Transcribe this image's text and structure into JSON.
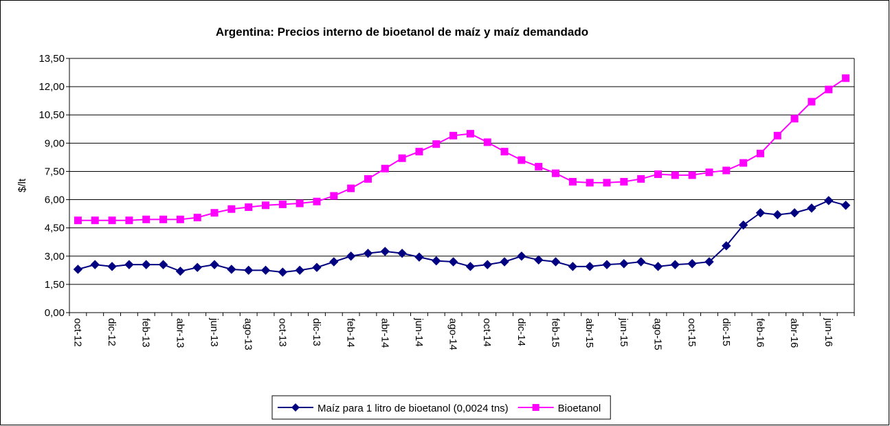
{
  "chart_data": {
    "type": "line",
    "title": "Argentina: Precios interno de bioetanol de maíz y maíz demandado",
    "y_label": "$/lt",
    "categories": [
      "oct-12",
      null,
      "dic-12",
      null,
      "feb-13",
      null,
      "abr-13",
      null,
      "jun-13",
      null,
      "ago-13",
      null,
      "oct-13",
      null,
      "dic-13",
      null,
      "feb-14",
      null,
      "abr-14",
      null,
      "jun-14",
      null,
      "ago-14",
      null,
      "oct-14",
      null,
      "dic-14",
      null,
      "feb-15",
      null,
      "abr-15",
      null,
      "jun-15",
      null,
      "ago-15",
      null,
      "oct-15",
      null,
      "dic-15",
      null,
      "feb-16",
      null,
      "abr-16",
      null,
      "jun-16",
      null
    ],
    "series": [
      {
        "name": "Maíz para 1 litro de bioetanol (0,0024 tns)",
        "color": "#000080",
        "marker": "diamond",
        "values": [
          2.3,
          2.55,
          2.45,
          2.55,
          2.55,
          2.55,
          2.2,
          2.4,
          2.55,
          2.3,
          2.25,
          2.25,
          2.15,
          2.25,
          2.4,
          2.7,
          3.0,
          3.15,
          3.25,
          3.15,
          2.95,
          2.75,
          2.7,
          2.45,
          2.55,
          2.7,
          3.0,
          2.8,
          2.7,
          2.45,
          2.45,
          2.55,
          2.6,
          2.7,
          2.45,
          2.55,
          2.6,
          2.7,
          3.55,
          4.65,
          5.3,
          5.2,
          5.3,
          5.55,
          5.95,
          5.7
        ]
      },
      {
        "name": "Bioetanol",
        "color": "#ff00ff",
        "marker": "square",
        "values": [
          4.9,
          4.9,
          4.9,
          4.9,
          4.95,
          4.95,
          4.95,
          5.05,
          5.3,
          5.5,
          5.6,
          5.7,
          5.75,
          5.8,
          5.9,
          6.2,
          6.6,
          7.1,
          7.65,
          8.2,
          8.55,
          8.95,
          9.4,
          9.5,
          9.05,
          8.55,
          8.1,
          7.75,
          7.4,
          6.95,
          6.9,
          6.9,
          6.95,
          7.1,
          7.35,
          7.3,
          7.3,
          7.45,
          7.55,
          7.95,
          8.45,
          9.4,
          10.3,
          11.2,
          11.85,
          12.45
        ]
      }
    ],
    "ylim": [
      0,
      13.5
    ],
    "yticks": [
      {
        "value": 0,
        "label": "0,00"
      },
      {
        "value": 1.5,
        "label": "1,50"
      },
      {
        "value": 3,
        "label": "3,00"
      },
      {
        "value": 4.5,
        "label": "4,50"
      },
      {
        "value": 6,
        "label": "6,00"
      },
      {
        "value": 7.5,
        "label": "7,50"
      },
      {
        "value": 9,
        "label": "9,00"
      },
      {
        "value": 10.5,
        "label": "10,50"
      },
      {
        "value": 12,
        "label": "12,00"
      },
      {
        "value": 13.5,
        "label": "13,50"
      }
    ],
    "grid": true,
    "legend": "bottom"
  }
}
